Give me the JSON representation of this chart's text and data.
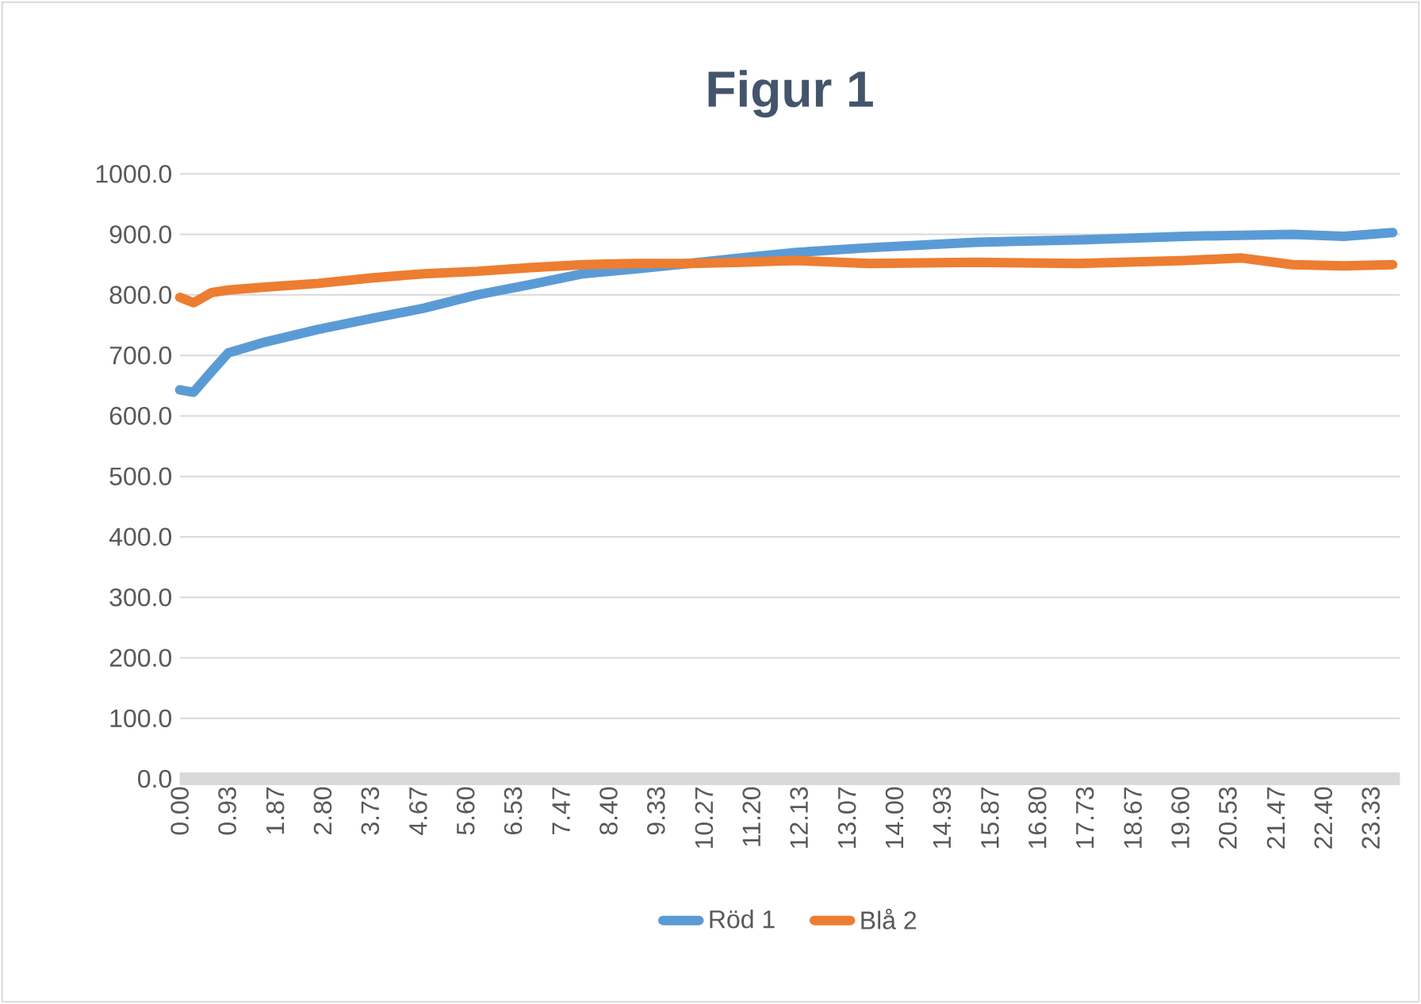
{
  "chart_data": {
    "type": "line",
    "title": "Figur 1",
    "series": [
      {
        "name": "Röd 1",
        "color": "#5b9bd5",
        "x": [
          0,
          0.27,
          0.63,
          0.95,
          1.67,
          2.71,
          3.75,
          4.78,
          5.82,
          6.86,
          7.9,
          8.94,
          9.97,
          11.0,
          12.05,
          13.5,
          15.6,
          17.6,
          19.7,
          21.8,
          22.8,
          23.76
        ],
        "values": [
          643,
          639,
          674,
          704,
          722,
          743,
          761,
          778,
          800,
          817,
          835,
          843,
          852,
          861,
          870,
          878,
          887,
          891,
          897,
          900,
          897,
          903
        ]
      },
      {
        "name": "Blå 2",
        "color": "#ed7d31",
        "x": [
          0,
          0.27,
          0.63,
          0.95,
          1.67,
          2.71,
          3.75,
          4.78,
          5.82,
          6.86,
          7.9,
          8.94,
          9.97,
          11.0,
          12.05,
          13.5,
          15.6,
          17.6,
          19.7,
          20.8,
          21.8,
          22.8,
          23.76
        ],
        "values": [
          796,
          787,
          804,
          808,
          813,
          819,
          828,
          835,
          839,
          845,
          850,
          852,
          852,
          854,
          857,
          852,
          854,
          852,
          857,
          861,
          850,
          848,
          850
        ]
      }
    ],
    "xlim": [
      0,
      23.9
    ],
    "xticks": [
      {
        "value": 0,
        "label": "0.00"
      },
      {
        "value": 0.93,
        "label": "0.93"
      },
      {
        "value": 1.87,
        "label": "1.87"
      },
      {
        "value": 2.8,
        "label": "2.80"
      },
      {
        "value": 3.73,
        "label": "3.73"
      },
      {
        "value": 4.67,
        "label": "4.67"
      },
      {
        "value": 5.6,
        "label": "5.60"
      },
      {
        "value": 6.53,
        "label": "6.53"
      },
      {
        "value": 7.47,
        "label": "7.47"
      },
      {
        "value": 8.4,
        "label": "8.40"
      },
      {
        "value": 9.33,
        "label": "9.33"
      },
      {
        "value": 10.27,
        "label": "10.27"
      },
      {
        "value": 11.2,
        "label": "11.20"
      },
      {
        "value": 12.13,
        "label": "12.13"
      },
      {
        "value": 13.07,
        "label": "13.07"
      },
      {
        "value": 14.0,
        "label": "14.00"
      },
      {
        "value": 14.93,
        "label": "14.93"
      },
      {
        "value": 15.87,
        "label": "15.87"
      },
      {
        "value": 16.8,
        "label": "16.80"
      },
      {
        "value": 17.73,
        "label": "17.73"
      },
      {
        "value": 18.67,
        "label": "18.67"
      },
      {
        "value": 19.6,
        "label": "19.60"
      },
      {
        "value": 20.53,
        "label": "20.53"
      },
      {
        "value": 21.47,
        "label": "21.47"
      },
      {
        "value": 22.4,
        "label": "22.40"
      },
      {
        "value": 23.33,
        "label": "23.33"
      }
    ],
    "ylim": [
      0,
      1000
    ],
    "yticks": [
      {
        "value": 0,
        "label": "0.0"
      },
      {
        "value": 100,
        "label": "100.0"
      },
      {
        "value": 200,
        "label": "200.0"
      },
      {
        "value": 300,
        "label": "300.0"
      },
      {
        "value": 400,
        "label": "400.0"
      },
      {
        "value": 500,
        "label": "500.0"
      },
      {
        "value": 600,
        "label": "600.0"
      },
      {
        "value": 700,
        "label": "700.0"
      },
      {
        "value": 800,
        "label": "800.0"
      },
      {
        "value": 900,
        "label": "900.0"
      },
      {
        "value": 1000,
        "label": "1000.0"
      }
    ],
    "grid": "y",
    "legend": "bottom",
    "marker": "none",
    "line_style": "solid"
  }
}
